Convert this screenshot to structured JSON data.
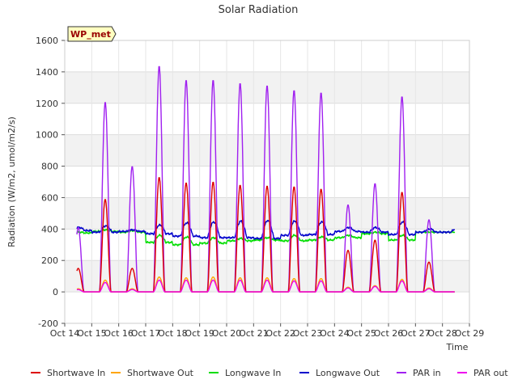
{
  "chart_data": {
    "type": "line",
    "title": "Solar Radiation",
    "site_label": "WP_met",
    "xlabel": "Time",
    "ylabel": "Radiation (W/m2, umol/m2/s)",
    "ylim": [
      -200,
      1600
    ],
    "yticks": [
      -200,
      0,
      200,
      400,
      600,
      800,
      1000,
      1200,
      1400,
      1600
    ],
    "xlim": [
      14,
      29
    ],
    "xticks": [
      {
        "x": 14,
        "label": "Oct 14"
      },
      {
        "x": 15,
        "label": "Oct 15"
      },
      {
        "x": 16,
        "label": "Oct 16"
      },
      {
        "x": 17,
        "label": "Oct 17"
      },
      {
        "x": 18,
        "label": "Oct 18"
      },
      {
        "x": 19,
        "label": "Oct 19"
      },
      {
        "x": 20,
        "label": "Oct 20"
      },
      {
        "x": 21,
        "label": "Oct 21"
      },
      {
        "x": 22,
        "label": "Oct 22"
      },
      {
        "x": 23,
        "label": "Oct 23"
      },
      {
        "x": 24,
        "label": "Oct 24"
      },
      {
        "x": 25,
        "label": "Oct 25"
      },
      {
        "x": 26,
        "label": "Oct 26"
      },
      {
        "x": 27,
        "label": "Oct 27"
      },
      {
        "x": 28,
        "label": "Oct 28"
      },
      {
        "x": 29,
        "label": "Oct 29"
      }
    ],
    "legend_position": "bottom",
    "grid": true,
    "days": [
      14.5,
      15.5,
      16.5,
      17.5,
      18.5,
      19.5,
      20.5,
      21.5,
      22.5,
      23.5,
      24.5,
      25.5,
      26.5,
      27.5
    ],
    "series": [
      {
        "name": "Shortwave In",
        "color": "#dd0000",
        "daily_peak": [
          150,
          590,
          150,
          730,
          695,
          700,
          680,
          675,
          670,
          655,
          265,
          330,
          635,
          190
        ]
      },
      {
        "name": "Shortwave Out",
        "color": "#ffa500",
        "daily_peak": [
          20,
          75,
          20,
          95,
          90,
          95,
          90,
          90,
          85,
          85,
          30,
          40,
          80,
          25
        ]
      },
      {
        "name": "Longwave In",
        "color": "#00dd00",
        "daily_day": [
          380,
          395,
          390,
          360,
          350,
          345,
          340,
          345,
          360,
          350,
          360,
          380,
          360,
          380
        ],
        "daily_night": [
          375,
          385,
          380,
          315,
          300,
          310,
          325,
          330,
          325,
          330,
          345,
          370,
          330,
          380
        ]
      },
      {
        "name": "Longwave Out",
        "color": "#0000cc",
        "daily_day": [
          410,
          420,
          395,
          425,
          440,
          445,
          450,
          455,
          450,
          445,
          410,
          410,
          445,
          400
        ],
        "daily_night": [
          390,
          380,
          385,
          370,
          355,
          345,
          345,
          340,
          360,
          365,
          385,
          380,
          365,
          380
        ]
      },
      {
        "name": "PAR in",
        "color": "#a020f0",
        "daily_peak": [
          410,
          1210,
          800,
          1440,
          1350,
          1350,
          1330,
          1315,
          1285,
          1270,
          555,
          690,
          1245,
          460
        ]
      },
      {
        "name": "PAR out",
        "color": "#ee00ee",
        "daily_peak": [
          15,
          60,
          15,
          75,
          75,
          75,
          75,
          75,
          70,
          70,
          25,
          35,
          70,
          20
        ]
      }
    ]
  }
}
